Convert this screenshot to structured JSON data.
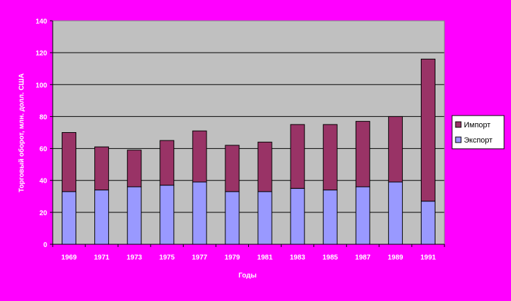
{
  "chart_data": {
    "type": "bar",
    "stacked": true,
    "title": "",
    "xlabel": "Годы",
    "ylabel": "Торговый оборот, млн. долл. США",
    "ylim": [
      0,
      140
    ],
    "yticks": [
      0,
      20,
      40,
      60,
      80,
      100,
      120,
      140
    ],
    "grid": true,
    "legend_position": "right",
    "categories": [
      "1969",
      "1971",
      "1973",
      "1975",
      "1977",
      "1979",
      "1981",
      "1983",
      "1985",
      "1987",
      "1989",
      "1991"
    ],
    "series": [
      {
        "name": "Экспорт",
        "color": "#9999ff",
        "values": [
          33,
          34,
          36,
          37,
          39,
          33,
          33,
          35,
          34,
          36,
          39,
          27
        ]
      },
      {
        "name": "Импорт",
        "color": "#993366",
        "values": [
          37,
          27,
          23,
          28,
          32,
          29,
          31,
          40,
          41,
          41,
          41,
          89
        ]
      }
    ],
    "legend_order": [
      "Импорт",
      "Экспорт"
    ]
  },
  "colors": {
    "background": "#ff00ff",
    "plot_area": "#c0c0c0",
    "text": "#ffffff"
  }
}
